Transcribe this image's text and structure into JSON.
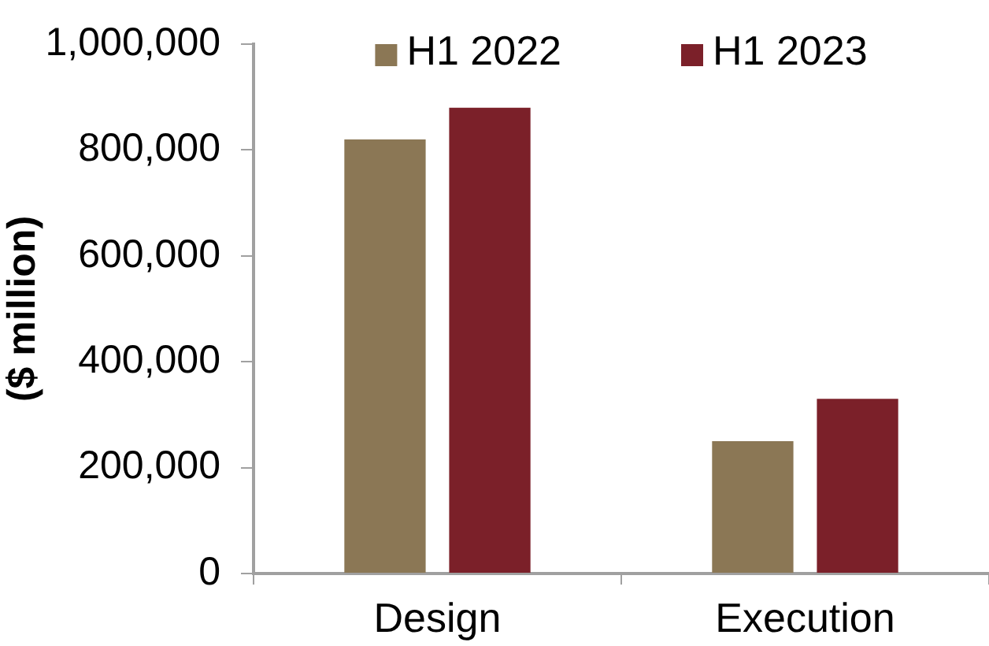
{
  "chart_data": {
    "type": "bar",
    "ylabel": "($ million)",
    "categories": [
      "Design",
      "Execution"
    ],
    "series": [
      {
        "name": "H1 2022",
        "color": "#8b7755",
        "values": [
          820000,
          250000
        ]
      },
      {
        "name": "H1 2023",
        "color": "#7b2029",
        "values": [
          880000,
          330000
        ]
      }
    ],
    "ylim": [
      0,
      1000000
    ],
    "yticks": [
      0,
      {
        "value": 200000,
        "label": "200,000"
      },
      {
        "value": 400000,
        "label": "400,000"
      },
      {
        "value": 600000,
        "label": "600,000"
      },
      {
        "value": 800000,
        "label": "800,000"
      },
      {
        "value": 1000000,
        "label": "1,000,000"
      }
    ],
    "legend": "top"
  }
}
